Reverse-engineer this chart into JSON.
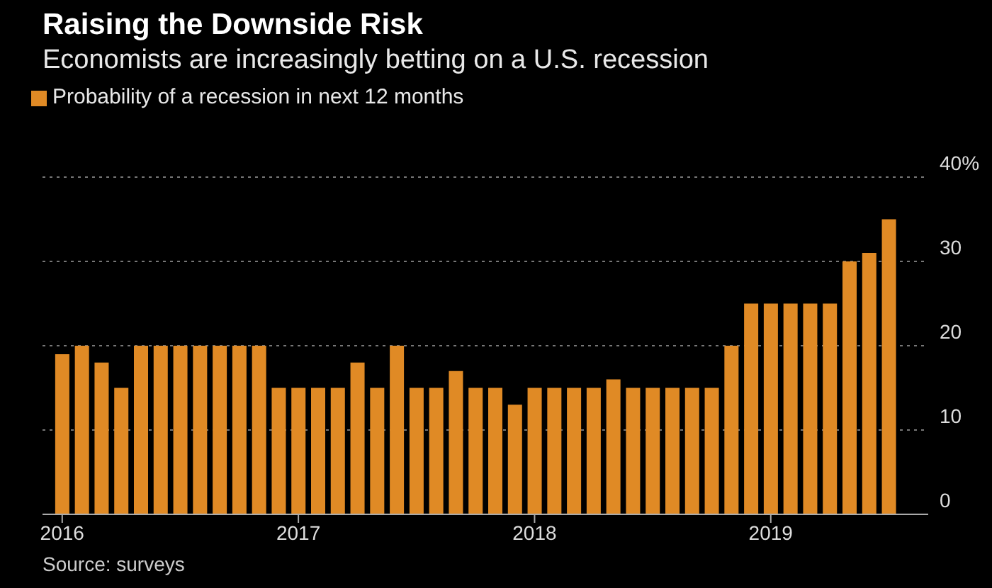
{
  "chart_data": {
    "type": "bar",
    "title": "Raising the Downside Risk",
    "subtitle": "Economists are increasingly betting on a U.S. recession",
    "x": [
      "2016-01",
      "2016-02",
      "2016-03",
      "2016-04",
      "2016-05",
      "2016-06",
      "2016-07",
      "2016-08",
      "2016-09",
      "2016-10",
      "2016-11",
      "2016-12",
      "2017-01",
      "2017-02",
      "2017-03",
      "2017-04",
      "2017-05",
      "2017-06",
      "2017-07",
      "2017-08",
      "2017-09",
      "2017-10",
      "2017-11",
      "2017-12",
      "2018-01",
      "2018-02",
      "2018-03",
      "2018-04",
      "2018-05",
      "2018-06",
      "2018-07",
      "2018-08",
      "2018-09",
      "2018-10",
      "2018-11",
      "2018-12",
      "2019-01",
      "2019-02",
      "2019-03",
      "2019-04",
      "2019-05",
      "2019-06",
      "2019-07"
    ],
    "series": [
      {
        "name": "Probability of a recession in next 12 months",
        "color": "#e08a25",
        "values": [
          19,
          20,
          18,
          15,
          20,
          20,
          20,
          20,
          20,
          20,
          20,
          15,
          15,
          15,
          15,
          18,
          15,
          20,
          15,
          15,
          17,
          15,
          15,
          13,
          15,
          15,
          15,
          15,
          16,
          15,
          15,
          15,
          15,
          15,
          20,
          25,
          25,
          25,
          25,
          25,
          30,
          31,
          35
        ]
      }
    ],
    "xlim": [
      "2015-12",
      "2019-09"
    ],
    "xticks": [
      "2016",
      "2017",
      "2018",
      "2019"
    ],
    "ylim": [
      0,
      40
    ],
    "yticks": [
      0,
      10,
      20,
      30,
      {
        "value": 40,
        "label": "40%"
      }
    ],
    "grid": "y",
    "legend": "top left",
    "annotations": [
      "Source: surveys"
    ]
  }
}
